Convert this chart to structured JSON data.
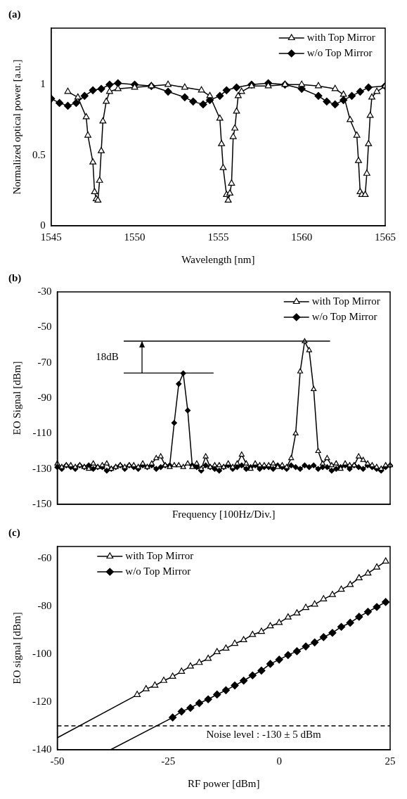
{
  "chart_data": [
    {
      "type": "line",
      "title": "(a)",
      "xlabel": "Wavelength [nm]",
      "ylabel": "Normalized optical power [a.u.]",
      "xlim": [
        1545,
        1565
      ],
      "xticks": [
        1545,
        1550,
        1555,
        1560,
        1565
      ],
      "ylim": [
        0,
        1.4
      ],
      "yticks": [
        0,
        0.5,
        1
      ],
      "legend": "top right",
      "series": [
        {
          "name": "with Top Mirror",
          "color": "#000000",
          "marker": "triangle",
          "x": [
            1546.0,
            1546.6,
            1547.1,
            1547.2,
            1547.5,
            1547.6,
            1547.7,
            1547.8,
            1547.9,
            1548.0,
            1548.1,
            1548.3,
            1548.5,
            1549.0,
            1550.0,
            1551.0,
            1552.0,
            1553.0,
            1554.0,
            1554.5,
            1555.1,
            1555.2,
            1555.3,
            1555.5,
            1555.6,
            1555.7,
            1555.8,
            1555.9,
            1556.0,
            1556.1,
            1556.2,
            1556.4,
            1557.0,
            1558.0,
            1559.0,
            1560.0,
            1561.0,
            1562.0,
            1562.5,
            1562.9,
            1563.3,
            1563.4,
            1563.5,
            1563.6,
            1563.8,
            1563.9,
            1564.0,
            1564.1,
            1564.2,
            1564.5,
            1565.0
          ],
          "values": [
            0.95,
            0.91,
            0.77,
            0.64,
            0.45,
            0.24,
            0.19,
            0.18,
            0.32,
            0.53,
            0.74,
            0.88,
            0.95,
            0.97,
            0.98,
            0.99,
            1.0,
            0.98,
            0.96,
            0.92,
            0.76,
            0.58,
            0.41,
            0.22,
            0.18,
            0.23,
            0.3,
            0.63,
            0.69,
            0.81,
            0.92,
            0.95,
            0.99,
            0.99,
            1.0,
            1.0,
            0.99,
            0.97,
            0.93,
            0.75,
            0.64,
            0.46,
            0.24,
            0.22,
            0.22,
            0.37,
            0.58,
            0.78,
            0.91,
            0.95,
            0.99
          ]
        },
        {
          "name": "w/o Top Mirror",
          "color": "#000000",
          "marker": "diamond",
          "x": [
            1545.0,
            1545.5,
            1546.0,
            1546.5,
            1547.0,
            1547.5,
            1548.0,
            1548.5,
            1549.0,
            1550.0,
            1551.0,
            1552.0,
            1553.0,
            1553.5,
            1554.1,
            1554.5,
            1555.1,
            1555.5,
            1556.1,
            1557.0,
            1558.0,
            1559.0,
            1560.0,
            1561.0,
            1561.5,
            1562.0,
            1562.5,
            1563.0,
            1563.5,
            1564.0,
            1565.0
          ],
          "values": [
            0.9,
            0.87,
            0.85,
            0.87,
            0.92,
            0.96,
            0.97,
            1.0,
            1.01,
            1.0,
            0.99,
            0.95,
            0.91,
            0.88,
            0.86,
            0.89,
            0.92,
            0.96,
            0.98,
            1.0,
            1.01,
            1.0,
            0.97,
            0.92,
            0.88,
            0.86,
            0.89,
            0.92,
            0.95,
            0.98,
            0.99
          ]
        }
      ]
    },
    {
      "type": "line",
      "title": "(b)",
      "xlabel": "Frequency [100Hz/Div.]",
      "ylabel": "EO Signal [dBm]",
      "ylim": [
        -150,
        -30
      ],
      "yticks": [
        -150,
        -130,
        -110,
        -90,
        -70,
        -50,
        -30
      ],
      "tick_labels": "y",
      "legend": "top right",
      "annotations": [
        "18dB"
      ],
      "categories": [
        null,
        null,
        null,
        null,
        null,
        null,
        null,
        null,
        null,
        null,
        null,
        null,
        null,
        null,
        null,
        null,
        null,
        null,
        null,
        null,
        null,
        null,
        null,
        null,
        null,
        null,
        null,
        null,
        null,
        null,
        null,
        null,
        null,
        null,
        null,
        null,
        null,
        null,
        null,
        null,
        null,
        null,
        null,
        null,
        null,
        null,
        null,
        null,
        null,
        null,
        null,
        null,
        null,
        null,
        null,
        null,
        null,
        null,
        null,
        null,
        null,
        null,
        null,
        null,
        null,
        null,
        null,
        null,
        null,
        null,
        null,
        null,
        null,
        null,
        null
      ],
      "series": [
        {
          "name": "with Top Mirror",
          "color": "#000000",
          "marker": "triangle",
          "values": [
            -127,
            -129,
            -128,
            -128,
            -129,
            -128,
            -129,
            -130,
            -127,
            -129,
            -128,
            -127,
            -130,
            -129,
            -128,
            -129,
            -128,
            -128,
            -129,
            -127,
            -129,
            -127,
            -124,
            -123,
            -128,
            -129,
            -128,
            -128,
            -129,
            -127,
            -129,
            -127,
            -130,
            -123,
            -129,
            -128,
            -128,
            -129,
            -127,
            -129,
            -127,
            -122,
            -127,
            -130,
            -127,
            -128,
            -128,
            -128,
            -127,
            -129,
            -128,
            -129,
            -124,
            -110,
            -75,
            -58,
            -63,
            -85,
            -120,
            -127,
            -124,
            -128,
            -127,
            -130,
            -127,
            -128,
            -128,
            -123,
            -125,
            -127,
            -128,
            -129,
            -130,
            -128,
            -128
          ]
        },
        {
          "name": "w/o Top Mirror",
          "color": "#000000",
          "marker": "diamond",
          "values": [
            -129,
            -130,
            -128,
            -129,
            -130,
            -128,
            -129,
            -128,
            -130,
            -129,
            -129,
            -131,
            -130,
            -129,
            -128,
            -130,
            -128,
            -129,
            -130,
            -128,
            -129,
            -128,
            -130,
            -129,
            -128,
            -128,
            -104,
            -82,
            -76,
            -97,
            -128,
            -129,
            -131,
            -128,
            -129,
            -130,
            -131,
            -129,
            -128,
            -130,
            -129,
            -128,
            -130,
            -129,
            -128,
            -130,
            -129,
            -129,
            -130,
            -128,
            -129,
            -130,
            -128,
            -129,
            -130,
            -128,
            -129,
            -128,
            -130,
            -129,
            -129,
            -131,
            -130,
            -129,
            -128,
            -130,
            -128,
            -129,
            -130,
            -128,
            -129,
            -130,
            -131,
            -129,
            -128
          ]
        }
      ]
    },
    {
      "type": "line",
      "title": "(c)",
      "xlabel": "RF power [dBm]",
      "ylabel": "EO signal [dBm]",
      "xlim": [
        -50,
        25
      ],
      "xticks": [
        -50,
        -25,
        0,
        25
      ],
      "ylim": [
        -140,
        -55
      ],
      "yticks": [
        -140,
        -120,
        -100,
        -80,
        -60
      ],
      "legend": "top left",
      "ref_lines": [
        {
          "axis": "y",
          "value": -130,
          "label": "Noise level : -130 ± 5 dBm",
          "line_style": "dashed",
          "color": "#000000"
        }
      ],
      "series": [
        {
          "name": "with Top Mirror",
          "color": "#000000",
          "marker": "triangle",
          "x": [
            -32,
            -30,
            -28,
            -26,
            -24,
            -22,
            -20,
            -18,
            -16,
            -14,
            -12,
            -10,
            -8,
            -6,
            -4,
            -2,
            0,
            2,
            4,
            6,
            8,
            10,
            12,
            14,
            16,
            18,
            20,
            22,
            24
          ],
          "values": [
            -117,
            -114.6,
            -113.1,
            -111.1,
            -109.4,
            -107.3,
            -105.1,
            -103.6,
            -101.9,
            -99.1,
            -97.6,
            -95.6,
            -94.1,
            -91.9,
            -90.6,
            -88.3,
            -86.9,
            -84.6,
            -82.9,
            -80.6,
            -79.2,
            -77,
            -75.2,
            -73,
            -71,
            -68.2,
            -66.2,
            -63.7,
            -61.2
          ]
        },
        {
          "name": "w/o Top Mirror",
          "color": "#000000",
          "marker": "diamond",
          "x": [
            -24,
            -22,
            -20,
            -18,
            -16,
            -14,
            -12,
            -10,
            -8,
            -6,
            -4,
            -2,
            0,
            2,
            4,
            6,
            8,
            10,
            12,
            14,
            16,
            18,
            20,
            22,
            24
          ],
          "values": [
            -126.5,
            -124,
            -122.5,
            -120.5,
            -118.9,
            -116.9,
            -115.1,
            -113.1,
            -111.1,
            -108.9,
            -106.9,
            -104.1,
            -102.3,
            -100.4,
            -98.8,
            -96.8,
            -95.1,
            -92.9,
            -91.1,
            -88.6,
            -86.9,
            -84.4,
            -82.3,
            -80.3,
            -78.2
          ]
        },
        {
          "type": "line",
          "color": "#000000",
          "marker": "none",
          "x": [
            -50,
            -32
          ],
          "values": [
            -135,
            -117
          ]
        },
        {
          "type": "line",
          "color": "#000000",
          "marker": "none",
          "x": [
            -38,
            -24
          ],
          "values": [
            -140,
            -126.5
          ]
        }
      ]
    }
  ]
}
